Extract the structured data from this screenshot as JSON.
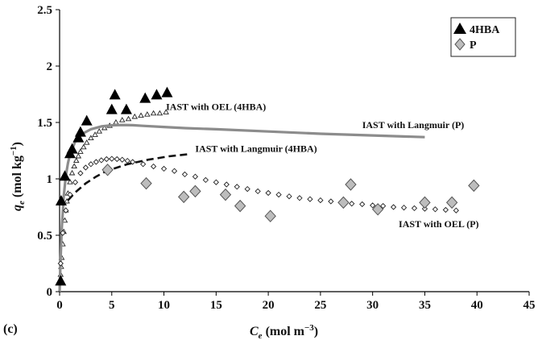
{
  "chart_data": {
    "type": "scatter",
    "panel_label": "(c)",
    "xlabel_main": "C",
    "xlabel_sub": "e",
    "xlabel_unit": " (mol m",
    "xlabel_unit_sup": "−3",
    "xlabel_close": ")",
    "ylabel_main": "q",
    "ylabel_sub": "e",
    "ylabel_unit": " (mol kg",
    "ylabel_unit_sup": "−1",
    "ylabel_close": ")",
    "xlim": [
      0,
      45
    ],
    "ylim": [
      0,
      2.5
    ],
    "x_ticks": [
      0,
      5,
      10,
      15,
      20,
      25,
      30,
      35,
      40,
      45
    ],
    "y_ticks": [
      0,
      0.5,
      1,
      1.5,
      2,
      2.5
    ],
    "y_tick_labels": [
      "0",
      "0.5",
      "1",
      "1.5",
      "2",
      "2.5"
    ],
    "grid": false,
    "legend_position": "top-right",
    "colors": {
      "triangle": "#000000",
      "diamond_fill": "#bdbdbd",
      "diamond_stroke": "#555555",
      "langmuir_p": "#8c8c8c",
      "dashed": "#111111",
      "dotted_fill": "#ffffff",
      "dotted_stroke": "#222222"
    },
    "series": [
      {
        "name": "4HBA",
        "kind": "triangle",
        "points": [
          [
            0.1,
            0.09
          ],
          [
            0.15,
            0.8
          ],
          [
            0.5,
            1.02
          ],
          [
            1.0,
            1.22
          ],
          [
            1.2,
            1.26
          ],
          [
            1.8,
            1.36
          ],
          [
            2.0,
            1.41
          ],
          [
            2.6,
            1.51
          ],
          [
            5.0,
            1.61
          ],
          [
            5.3,
            1.74
          ],
          [
            6.4,
            1.61
          ],
          [
            8.2,
            1.71
          ],
          [
            9.3,
            1.74
          ],
          [
            10.3,
            1.76
          ]
        ]
      },
      {
        "name": "P",
        "kind": "diamond",
        "points": [
          [
            4.6,
            1.08
          ],
          [
            8.3,
            0.96
          ],
          [
            11.9,
            0.84
          ],
          [
            13.0,
            0.89
          ],
          [
            15.9,
            0.86
          ],
          [
            17.3,
            0.76
          ],
          [
            20.2,
            0.67
          ],
          [
            27.2,
            0.79
          ],
          [
            27.9,
            0.95
          ],
          [
            30.5,
            0.73
          ],
          [
            35.0,
            0.79
          ],
          [
            37.6,
            0.79
          ],
          [
            39.7,
            0.94
          ]
        ]
      },
      {
        "name": "IAST with OEL (4HBA)",
        "kind": "dotted-triangles",
        "points": [
          [
            0.05,
            0.08
          ],
          [
            0.1,
            0.15
          ],
          [
            0.15,
            0.22
          ],
          [
            0.2,
            0.3
          ],
          [
            0.3,
            0.42
          ],
          [
            0.4,
            0.53
          ],
          [
            0.5,
            0.63
          ],
          [
            0.6,
            0.72
          ],
          [
            0.7,
            0.8
          ],
          [
            0.8,
            0.87
          ],
          [
            1.0,
            0.97
          ],
          [
            1.2,
            1.05
          ],
          [
            1.4,
            1.11
          ],
          [
            1.6,
            1.16
          ],
          [
            1.8,
            1.2
          ],
          [
            2.0,
            1.24
          ],
          [
            2.3,
            1.28
          ],
          [
            2.6,
            1.32
          ],
          [
            3.0,
            1.36
          ],
          [
            3.4,
            1.39
          ],
          [
            3.8,
            1.42
          ],
          [
            4.3,
            1.45
          ],
          [
            4.8,
            1.47
          ],
          [
            5.4,
            1.5
          ],
          [
            6.0,
            1.52
          ],
          [
            6.6,
            1.53
          ],
          [
            7.2,
            1.55
          ],
          [
            7.8,
            1.56
          ],
          [
            8.4,
            1.57
          ],
          [
            9.0,
            1.58
          ],
          [
            9.6,
            1.58
          ],
          [
            10.2,
            1.59
          ]
        ]
      },
      {
        "name": "IAST with Langmuir (P)",
        "kind": "solid-line",
        "points": [
          [
            0,
            0
          ],
          [
            0.1,
            0.3
          ],
          [
            0.2,
            0.55
          ],
          [
            0.4,
            0.85
          ],
          [
            0.6,
            1.03
          ],
          [
            0.8,
            1.14
          ],
          [
            1.0,
            1.22
          ],
          [
            1.5,
            1.33
          ],
          [
            2.0,
            1.39
          ],
          [
            3.0,
            1.44
          ],
          [
            4.0,
            1.465
          ],
          [
            5.0,
            1.475
          ],
          [
            6.0,
            1.478
          ],
          [
            7.0,
            1.476
          ],
          [
            8.0,
            1.47
          ],
          [
            10.0,
            1.46
          ],
          [
            12.0,
            1.45
          ],
          [
            15.0,
            1.44
          ],
          [
            20.0,
            1.42
          ],
          [
            25.0,
            1.4
          ],
          [
            30.0,
            1.385
          ],
          [
            35.0,
            1.37
          ]
        ]
      },
      {
        "name": "IAST with Langmuir (4HBA)",
        "kind": "dashed-line",
        "points": [
          [
            0.8,
            0.81
          ],
          [
            1.5,
            0.88
          ],
          [
            2.5,
            0.96
          ],
          [
            3.5,
            1.02
          ],
          [
            4.5,
            1.07
          ],
          [
            5.5,
            1.1
          ],
          [
            6.5,
            1.13
          ],
          [
            7.5,
            1.15
          ],
          [
            8.5,
            1.17
          ],
          [
            9.5,
            1.185
          ],
          [
            10.5,
            1.2
          ],
          [
            11.5,
            1.21
          ],
          [
            12.5,
            1.22
          ]
        ]
      },
      {
        "name": "IAST with OEL (P)",
        "kind": "dotted-diamonds",
        "points": [
          [
            0.1,
            0.25
          ],
          [
            0.3,
            0.52
          ],
          [
            0.6,
            0.72
          ],
          [
            1.0,
            0.86
          ],
          [
            1.5,
            0.97
          ],
          [
            2.0,
            1.05
          ],
          [
            2.5,
            1.1
          ],
          [
            3.0,
            1.13
          ],
          [
            3.5,
            1.15
          ],
          [
            4.0,
            1.165
          ],
          [
            4.5,
            1.175
          ],
          [
            5.0,
            1.178
          ],
          [
            5.5,
            1.175
          ],
          [
            6.0,
            1.17
          ],
          [
            6.5,
            1.16
          ],
          [
            7.0,
            1.15
          ],
          [
            8.0,
            1.13
          ],
          [
            9.0,
            1.11
          ],
          [
            10.0,
            1.09
          ],
          [
            11.0,
            1.07
          ],
          [
            12.0,
            1.04
          ],
          [
            13.0,
            1.02
          ],
          [
            14.0,
            0.99
          ],
          [
            15.0,
            0.97
          ],
          [
            16.0,
            0.95
          ],
          [
            17.0,
            0.93
          ],
          [
            18.0,
            0.91
          ],
          [
            19.0,
            0.89
          ],
          [
            20.0,
            0.875
          ],
          [
            21.0,
            0.86
          ],
          [
            22.0,
            0.845
          ],
          [
            23.0,
            0.83
          ],
          [
            24.0,
            0.82
          ],
          [
            25.0,
            0.81
          ],
          [
            26.0,
            0.8
          ],
          [
            27.0,
            0.79
          ],
          [
            28.0,
            0.78
          ],
          [
            29.0,
            0.775
          ],
          [
            30.0,
            0.765
          ],
          [
            31.0,
            0.76
          ],
          [
            32.0,
            0.75
          ],
          [
            33.0,
            0.745
          ],
          [
            34.0,
            0.74
          ],
          [
            35.0,
            0.735
          ],
          [
            36.0,
            0.73
          ],
          [
            37.0,
            0.725
          ],
          [
            38.0,
            0.72
          ]
        ]
      }
    ],
    "annotations": [
      {
        "text": "IAST with OEL (4HBA)",
        "x": 10.2,
        "y": 1.61
      },
      {
        "text": "IAST with Langmuir (P)",
        "x": 29.0,
        "y": 1.45
      },
      {
        "text": "IAST with Langmuir (4HBA)",
        "x": 13.0,
        "y": 1.24
      },
      {
        "text": "IAST with OEL (P)",
        "x": 32.5,
        "y": 0.57
      }
    ],
    "legend": [
      {
        "label": "4HBA",
        "marker": "triangle"
      },
      {
        "label": "P",
        "marker": "diamond"
      }
    ]
  }
}
